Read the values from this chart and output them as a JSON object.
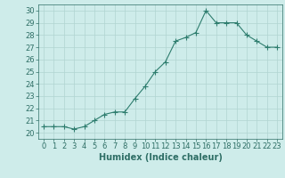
{
  "x": [
    0,
    1,
    2,
    3,
    4,
    5,
    6,
    7,
    8,
    9,
    10,
    11,
    12,
    13,
    14,
    15,
    16,
    17,
    18,
    19,
    20,
    21,
    22,
    23
  ],
  "y": [
    20.5,
    20.5,
    20.5,
    20.3,
    20.5,
    21.0,
    21.5,
    21.7,
    21.7,
    22.8,
    23.8,
    25.0,
    25.8,
    27.5,
    27.8,
    28.2,
    30.0,
    29.0,
    29.0,
    29.0,
    28.0,
    27.5,
    27.0,
    27.0
  ],
  "line_color": "#2e7d6e",
  "marker": "+",
  "marker_size": 4.0,
  "line_width": 0.8,
  "xlabel": "Humidex (Indice chaleur)",
  "xlim": [
    -0.5,
    23.5
  ],
  "ylim": [
    19.5,
    30.5
  ],
  "yticks": [
    20,
    21,
    22,
    23,
    24,
    25,
    26,
    27,
    28,
    29,
    30
  ],
  "xticks": [
    0,
    1,
    2,
    3,
    4,
    5,
    6,
    7,
    8,
    9,
    10,
    11,
    12,
    13,
    14,
    15,
    16,
    17,
    18,
    19,
    20,
    21,
    22,
    23
  ],
  "bg_color": "#ceecea",
  "grid_color": "#b0d4d1",
  "tick_label_color": "#2e6e65",
  "xlabel_color": "#2e6e65",
  "font_size": 6.0,
  "xlabel_fontsize": 7.0
}
